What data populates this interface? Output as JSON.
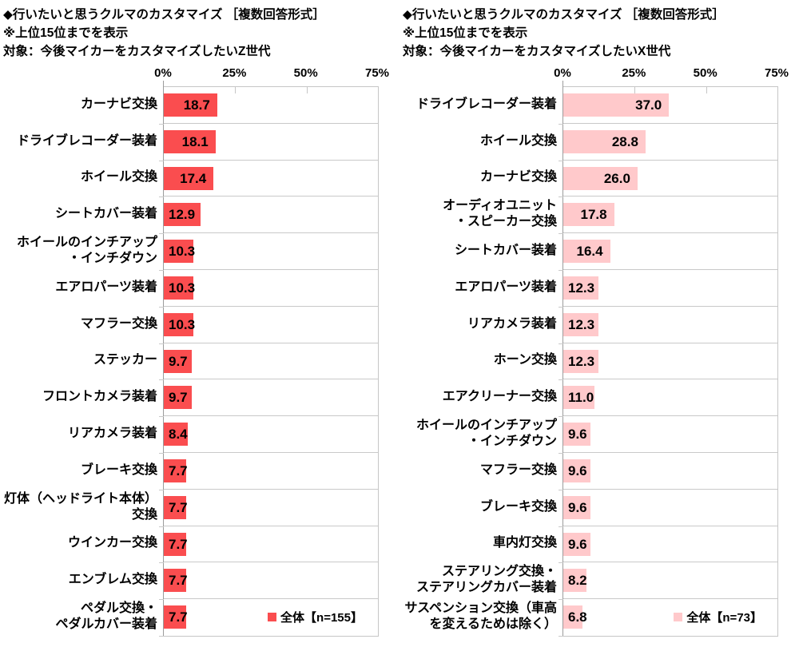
{
  "style": {
    "background": "#ffffff",
    "text_color": "#000000",
    "grid_color": "#c9c9c9",
    "axis_color": "#9b9b9b"
  },
  "chart_data": [
    {
      "type": "bar",
      "orientation": "horizontal",
      "header_lines": [
        "◆行いたいと思うクルマのカスタマイズ ［複数回答形式］",
        "※上位15位までを表示",
        "対象：今後マイカーをカスタマイズしたいZ世代"
      ],
      "categories": [
        "カーナビ交換",
        "ドライブレコーダー装着",
        "ホイール交換",
        "シートカバー装着",
        "ホイールのインチアップ\n・インチダウン",
        "エアロパーツ装着",
        "マフラー交換",
        "ステッカー",
        "フロントカメラ装着",
        "リアカメラ装着",
        "ブレーキ交換",
        "灯体（ヘッドライト本体）\n交換",
        "ウインカー交換",
        "エンブレム交換",
        "ペダル交換・\nペダルカバー装着"
      ],
      "values": [
        18.7,
        18.1,
        17.4,
        12.9,
        10.3,
        10.3,
        10.3,
        9.7,
        9.7,
        8.4,
        7.7,
        7.7,
        7.7,
        7.7,
        7.7
      ],
      "value_labels": [
        "18.7",
        "18.1",
        "17.4",
        "12.9",
        "10.3",
        "10.3",
        "10.3",
        "9.7",
        "9.7",
        "8.4",
        "7.7",
        "7.7",
        "7.7",
        "7.7",
        "7.7"
      ],
      "legend_label": "全体【n=155】",
      "bar_color": "#fa4d4f",
      "x_axis": {
        "max": 75,
        "ticks": [
          0,
          25,
          50,
          75
        ],
        "tick_labels": [
          "0%",
          "25%",
          "50%",
          "75%"
        ]
      },
      "grid": "row-separators"
    },
    {
      "type": "bar",
      "orientation": "horizontal",
      "header_lines": [
        "◆行いたいと思うクルマのカスタマイズ ［複数回答形式］",
        "※上位15位までを表示",
        "対象：今後マイカーをカスタマイズしたいX世代"
      ],
      "categories": [
        "ドライブレコーダー装着",
        "ホイール交換",
        "カーナビ交換",
        "オーディオユニット\n・スピーカー交換",
        "シートカバー装着",
        "エアロパーツ装着",
        "リアカメラ装着",
        "ホーン交換",
        "エアクリーナー交換",
        "ホイールのインチアップ\n・インチダウン",
        "マフラー交換",
        "ブレーキ交換",
        "車内灯交換",
        "ステアリング交換・\nステアリングカバー装着",
        "サスペンション交換（車高\nを変えるためは除く）"
      ],
      "values": [
        37.0,
        28.8,
        26.0,
        17.8,
        16.4,
        12.3,
        12.3,
        12.3,
        11.0,
        9.6,
        9.6,
        9.6,
        9.6,
        8.2,
        6.8
      ],
      "value_labels": [
        "37.0",
        "28.8",
        "26.0",
        "17.8",
        "16.4",
        "12.3",
        "12.3",
        "12.3",
        "11.0",
        "9.6",
        "9.6",
        "9.6",
        "9.6",
        "8.2",
        "6.8"
      ],
      "legend_label": "全体【n=73】",
      "bar_color": "#ffc9cb",
      "x_axis": {
        "max": 75,
        "ticks": [
          0,
          25,
          50,
          75
        ],
        "tick_labels": [
          "0%",
          "25%",
          "50%",
          "75%"
        ]
      },
      "grid": "row-separators"
    }
  ]
}
